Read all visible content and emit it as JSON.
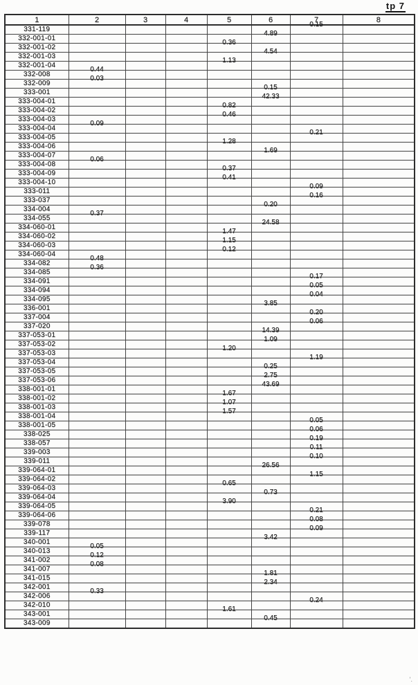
{
  "page": {
    "label": "tp 7",
    "noise_mark": "'."
  },
  "table": {
    "headers": [
      "1",
      "2",
      "3",
      "4",
      "5",
      "6",
      "7",
      "8"
    ],
    "rows": [
      {
        "id": "331-119",
        "col": 7,
        "val": "0.15"
      },
      {
        "id": "332-001-01",
        "col": 6,
        "val": "4.89"
      },
      {
        "id": "332-001-02",
        "col": 5,
        "val": "0.36"
      },
      {
        "id": "332-001-03",
        "col": 6,
        "val": "4.54"
      },
      {
        "id": "332-001-04",
        "col": 5,
        "val": "1.13"
      },
      {
        "id": "332-008",
        "col": 2,
        "val": "0.44"
      },
      {
        "id": "332-009",
        "col": 2,
        "val": "0.03"
      },
      {
        "id": "333-001",
        "col": 6,
        "val": "0.15"
      },
      {
        "id": "333-004-01",
        "col": 6,
        "val": "42.33"
      },
      {
        "id": "333-004-02",
        "col": 5,
        "val": "0.82"
      },
      {
        "id": "333-004-03",
        "col": 5,
        "val": "0.46"
      },
      {
        "id": "333-004-04",
        "col": 2,
        "val": "0.09"
      },
      {
        "id": "333-004-05",
        "col": 7,
        "val": "0.21"
      },
      {
        "id": "333-004-06",
        "col": 5,
        "val": "1.28"
      },
      {
        "id": "333-004-07",
        "col": 6,
        "val": "1.69"
      },
      {
        "id": "333-004-08",
        "col": 2,
        "val": "0.06"
      },
      {
        "id": "333-004-09",
        "col": 5,
        "val": "0.37"
      },
      {
        "id": "333-004-10",
        "col": 5,
        "val": "0.41"
      },
      {
        "id": "333-011",
        "col": 7,
        "val": "0.09"
      },
      {
        "id": "333-037",
        "col": 7,
        "val": "0.16"
      },
      {
        "id": "334-004",
        "col": 6,
        "val": "0.20"
      },
      {
        "id": "334-055",
        "col": 2,
        "val": "0.37"
      },
      {
        "id": "334-060-01",
        "col": 6,
        "val": "24.58"
      },
      {
        "id": "334-060-02",
        "col": 5,
        "val": "1.47"
      },
      {
        "id": "334-060-03",
        "col": 5,
        "val": "1.15"
      },
      {
        "id": "334-060-04",
        "col": 5,
        "val": "0.12"
      },
      {
        "id": "334-082",
        "col": 2,
        "val": "0.48"
      },
      {
        "id": "334-085",
        "col": 2,
        "val": "0.36"
      },
      {
        "id": "334-091",
        "col": 7,
        "val": "0.17"
      },
      {
        "id": "334-094",
        "col": 7,
        "val": "0.05"
      },
      {
        "id": "334-095",
        "col": 7,
        "val": "0.04"
      },
      {
        "id": "336-001",
        "col": 6,
        "val": "3.85"
      },
      {
        "id": "337-004",
        "col": 7,
        "val": "0.20"
      },
      {
        "id": "337-020",
        "col": 7,
        "val": "0.06"
      },
      {
        "id": "337-053-01",
        "col": 6,
        "val": "14.39"
      },
      {
        "id": "337-053-02",
        "col": 6,
        "val": "1.09"
      },
      {
        "id": "337-053-03",
        "col": 5,
        "val": "1.20"
      },
      {
        "id": "337-053-04",
        "col": 7,
        "val": "1.19"
      },
      {
        "id": "337-053-05",
        "col": 6,
        "val": "0.25"
      },
      {
        "id": "337-053-06",
        "col": 6,
        "val": "2.75"
      },
      {
        "id": "338-001-01",
        "col": 6,
        "val": "43.69"
      },
      {
        "id": "338-001-02",
        "col": 5,
        "val": "1.67"
      },
      {
        "id": "338-001-03",
        "col": 5,
        "val": "1.07"
      },
      {
        "id": "338-001-04",
        "col": 5,
        "val": "1.57"
      },
      {
        "id": "338-001-05",
        "col": 7,
        "val": "0.05"
      },
      {
        "id": "338-025",
        "col": 7,
        "val": "0.06"
      },
      {
        "id": "338-057",
        "col": 7,
        "val": "0.19"
      },
      {
        "id": "339-003",
        "col": 7,
        "val": "0.11"
      },
      {
        "id": "339-011",
        "col": 7,
        "val": "0.10"
      },
      {
        "id": "339-064-01",
        "col": 6,
        "val": "26.56"
      },
      {
        "id": "339-064-02",
        "col": 7,
        "val": "1.15"
      },
      {
        "id": "339-064-03",
        "col": 5,
        "val": "0.65"
      },
      {
        "id": "339-064-04",
        "col": 6,
        "val": "0.73"
      },
      {
        "id": "339-064-05",
        "col": 5,
        "val": "3.90"
      },
      {
        "id": "339-064-06",
        "col": 7,
        "val": "0.21"
      },
      {
        "id": "339-078",
        "col": 7,
        "val": "0.08"
      },
      {
        "id": "339-117",
        "col": 7,
        "val": "0.09"
      },
      {
        "id": "340-001",
        "col": 6,
        "val": "3.42"
      },
      {
        "id": "340-013",
        "col": 2,
        "val": "0.05"
      },
      {
        "id": "341-002",
        "col": 2,
        "val": "0.12"
      },
      {
        "id": "341-007",
        "col": 2,
        "val": "0.08"
      },
      {
        "id": "341-015",
        "col": 6,
        "val": "1.81"
      },
      {
        "id": "342-001",
        "col": 6,
        "val": "2.34"
      },
      {
        "id": "342-006",
        "col": 2,
        "val": "0.33"
      },
      {
        "id": "342-010",
        "col": 7,
        "val": "0.24"
      },
      {
        "id": "343-001",
        "col": 5,
        "val": "1.61"
      },
      {
        "id": "343-009",
        "col": 6,
        "val": "0.45"
      }
    ]
  }
}
